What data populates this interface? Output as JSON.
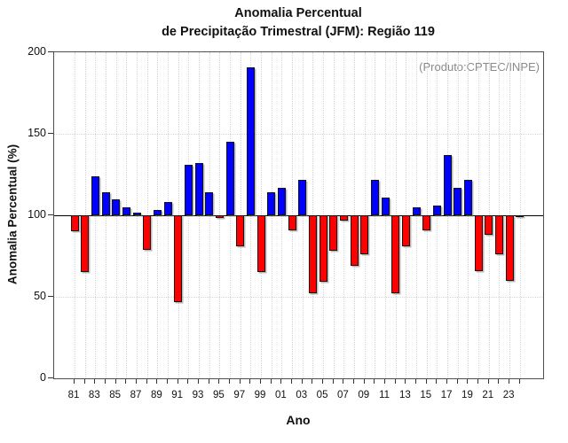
{
  "title": {
    "line1": "Anomalia Percentual",
    "line2": "de Precipitação Trimestral (JFM): Região 119"
  },
  "annotation": "(Produto:CPTEC/INPE)",
  "colors": {
    "positive_bar": "#0000ff",
    "negative_bar": "#ff0000",
    "baseline_line": "#000000",
    "grid_line": "#d6d6d6",
    "annotation_text": "#8a8a8a",
    "frame": "#4f4f4f"
  },
  "chart_data": {
    "type": "bar",
    "title": "Anomalia Percentual de Precipitação Trimestral (JFM): Região 119",
    "xlabel": "Ano",
    "ylabel": "Anomalia Percentual (%)",
    "ylim": [
      0,
      200
    ],
    "yticks": [
      0,
      50,
      100,
      150,
      200
    ],
    "hgridlines": [
      50,
      150
    ],
    "baseline": 100,
    "grid": "dotted, vertical line per year and horizontal at 50/150",
    "legend": "none",
    "x_tick_labels": [
      "81",
      "83",
      "85",
      "87",
      "89",
      "91",
      "93",
      "95",
      "97",
      "99",
      "01",
      "03",
      "05",
      "07",
      "09",
      "11",
      "13",
      "15",
      "17",
      "19",
      "21",
      "23"
    ],
    "categories": [
      1981,
      1982,
      1983,
      1984,
      1985,
      1986,
      1987,
      1988,
      1989,
      1990,
      1991,
      1992,
      1993,
      1994,
      1995,
      1996,
      1997,
      1998,
      1999,
      2000,
      2001,
      2002,
      2003,
      2004,
      2005,
      2006,
      2007,
      2008,
      2009,
      2010,
      2011,
      2012,
      2013,
      2014,
      2015,
      2016,
      2017,
      2018,
      2019,
      2020,
      2021,
      2022,
      2023,
      2024
    ],
    "values": [
      90,
      65,
      124,
      114,
      110,
      105,
      101.5,
      79,
      103,
      108,
      47,
      131,
      132,
      114,
      98.5,
      145,
      81,
      191,
      65,
      114,
      117,
      91,
      122,
      52,
      59,
      78,
      97,
      69,
      76,
      122,
      111,
      52,
      81,
      105,
      91,
      106,
      137,
      117,
      122,
      66,
      88,
      76,
      60,
      99
    ],
    "color_rule": "blue above baseline 100, red below baseline 100"
  }
}
